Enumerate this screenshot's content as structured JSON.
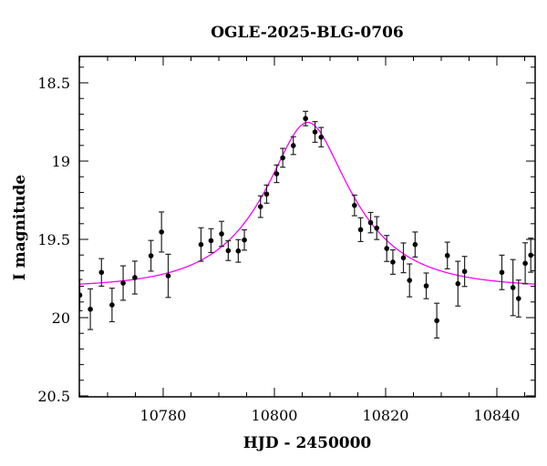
{
  "chart_data": {
    "type": "scatter",
    "title": "OGLE-2025-BLG-0706",
    "xlabel": "HJD - 2450000",
    "ylabel": "I magnitude",
    "xlim": [
      10765,
      10847
    ],
    "ylim": [
      20.5,
      18.3
    ],
    "y_inverted": true,
    "x_ticks": [
      10780,
      10800,
      10820,
      10840
    ],
    "x_tick_labels": [
      "10780",
      "10800",
      "10820",
      "10840"
    ],
    "x_minor_step": 5,
    "y_ticks": [
      18.5,
      19,
      19.5,
      20,
      20.5
    ],
    "y_tick_labels": [
      "18.5",
      "19",
      "19.5",
      "20",
      "20.5"
    ],
    "y_minor_step": 0.1,
    "grid": false,
    "series": [
      {
        "kind": "points-with-errorbars",
        "color": "#000000",
        "points": [
          [
            10765.0,
            19.856,
            0.1
          ],
          [
            10766.9,
            19.946,
            0.13
          ],
          [
            10768.9,
            19.711,
            0.088
          ],
          [
            10770.8,
            19.919,
            0.107
          ],
          [
            10772.8,
            19.779,
            0.11
          ],
          [
            10774.9,
            19.744,
            0.105
          ],
          [
            10777.8,
            19.605,
            0.098
          ],
          [
            10779.7,
            19.453,
            0.128
          ],
          [
            10780.9,
            19.733,
            0.138
          ],
          [
            10786.8,
            19.533,
            0.107
          ],
          [
            10788.6,
            19.508,
            0.076
          ],
          [
            10790.5,
            19.465,
            0.08
          ],
          [
            10791.7,
            19.572,
            0.063
          ],
          [
            10793.5,
            19.574,
            0.072
          ],
          [
            10794.6,
            19.504,
            0.065
          ],
          [
            10797.5,
            19.291,
            0.069
          ],
          [
            10798.6,
            19.211,
            0.058
          ],
          [
            10800.4,
            19.081,
            0.056
          ],
          [
            10801.5,
            18.979,
            0.06
          ],
          [
            10803.4,
            18.901,
            0.057
          ],
          [
            10805.6,
            18.728,
            0.046
          ],
          [
            10807.3,
            18.814,
            0.066
          ],
          [
            10808.4,
            18.847,
            0.062
          ],
          [
            10814.4,
            19.283,
            0.066
          ],
          [
            10815.5,
            19.438,
            0.076
          ],
          [
            10817.3,
            19.393,
            0.065
          ],
          [
            10818.4,
            19.428,
            0.073
          ],
          [
            10820.2,
            19.558,
            0.083
          ],
          [
            10821.3,
            19.645,
            0.078
          ],
          [
            10823.2,
            19.618,
            0.095
          ],
          [
            10824.3,
            19.762,
            0.105
          ],
          [
            10825.3,
            19.533,
            0.08
          ],
          [
            10827.3,
            19.797,
            0.082
          ],
          [
            10829.2,
            20.019,
            0.111
          ],
          [
            10831.1,
            19.603,
            0.085
          ],
          [
            10833.0,
            19.783,
            0.143
          ],
          [
            10834.2,
            19.705,
            0.096
          ],
          [
            10840.9,
            19.711,
            0.11
          ],
          [
            10842.9,
            19.808,
            0.179
          ],
          [
            10843.9,
            19.878,
            0.118
          ],
          [
            10845.1,
            19.653,
            0.131
          ],
          [
            10846.1,
            19.601,
            0.109
          ]
        ]
      },
      {
        "kind": "model-curve",
        "color": "#ff00ff",
        "model": "point-source point-lens",
        "baseline_mag": 19.81,
        "t0": 10806.0,
        "u0": 0.4,
        "tE": 15.0
      }
    ]
  }
}
